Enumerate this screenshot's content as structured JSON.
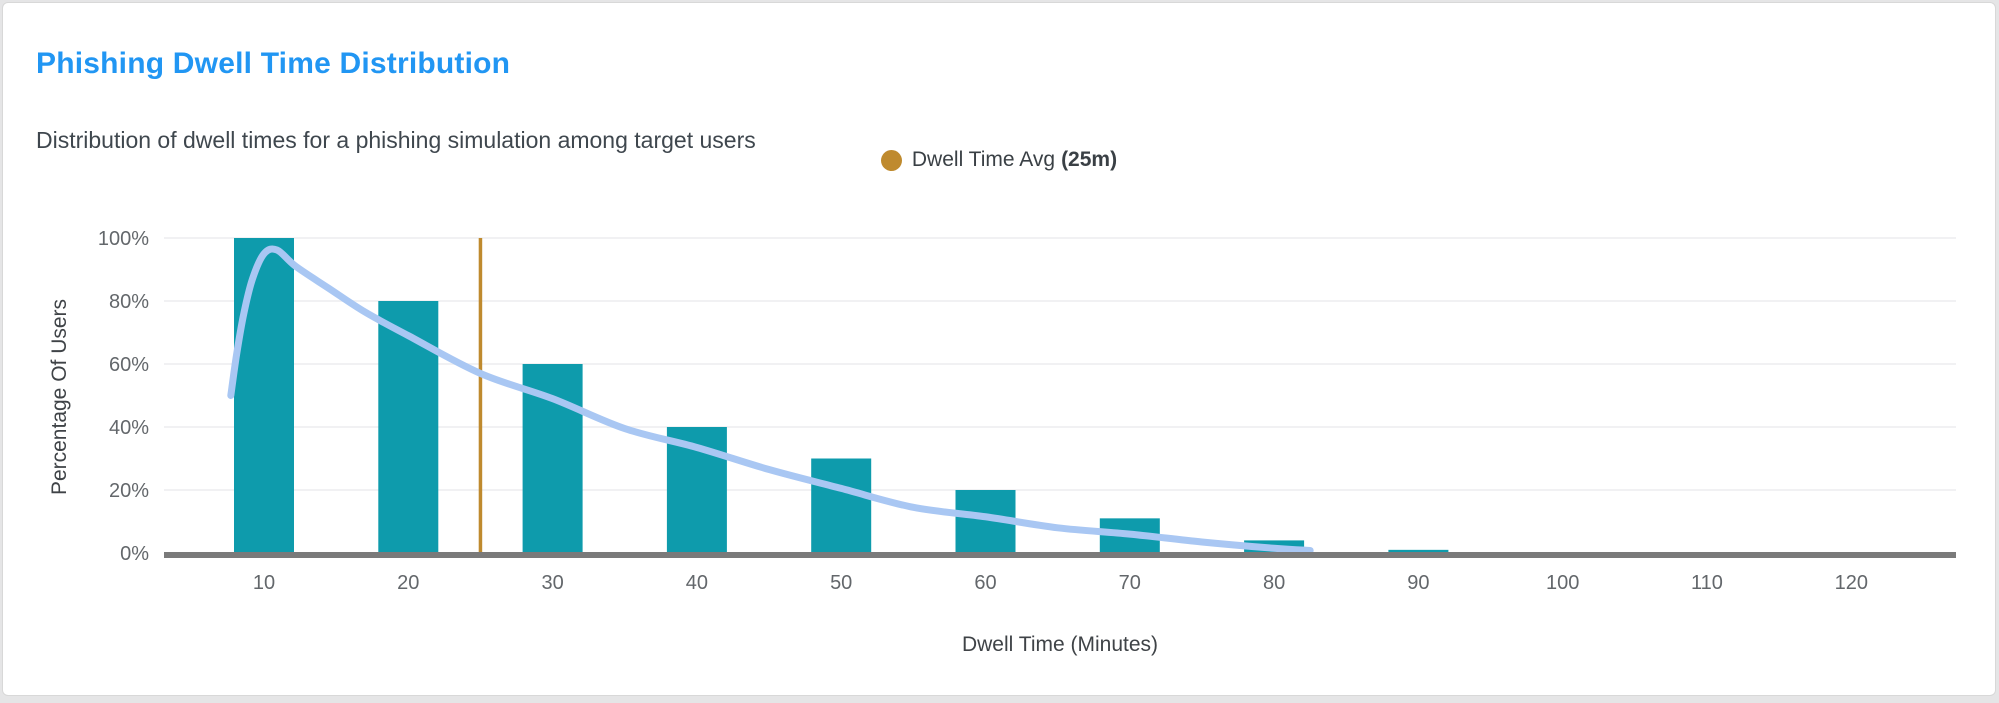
{
  "header": {
    "title": "Phishing Dwell Time Distribution",
    "subtitle": "Distribution of dwell times for a phishing simulation among target users"
  },
  "legend": {
    "label": "Dwell Time Avg",
    "value": "(25m)",
    "marker_color": "#bf8a2e"
  },
  "colors": {
    "title_accent": "#2196f3",
    "bar": "#0e9bac",
    "trend_line": "#a9c7f3",
    "avg_line": "#bf8a2e",
    "axis_line": "#7a7a7a",
    "gridline": "#f1f1f3",
    "tick_text": "#63676b",
    "axis_title_text": "#3f4347"
  },
  "chart_data": {
    "type": "bar",
    "title": "Phishing Dwell Time Distribution",
    "xlabel": "Dwell Time (Minutes)",
    "ylabel": "Percentage Of Users",
    "categories": [
      10,
      20,
      30,
      40,
      50,
      60,
      70,
      80,
      90,
      100,
      110,
      120
    ],
    "values": [
      100,
      80,
      60,
      40,
      30,
      20,
      11,
      4,
      1,
      0,
      0,
      0
    ],
    "ylim": [
      0,
      100
    ],
    "y_ticks_percent": [
      0,
      20,
      40,
      60,
      80,
      100
    ],
    "y_tick_suffix": "%",
    "grid": true,
    "legend_position": "top-center",
    "avg_marker": {
      "label": "Dwell Time Avg",
      "value_display": "25m",
      "minutes": 25
    },
    "trend_curve": {
      "points_min_pct": [
        [
          7.7,
          50
        ],
        [
          8.1,
          63
        ],
        [
          8.6,
          76
        ],
        [
          9.2,
          87
        ],
        [
          10,
          95
        ],
        [
          10.9,
          96.2
        ],
        [
          12.2,
          91
        ],
        [
          14.5,
          84
        ],
        [
          17,
          76.5
        ],
        [
          20,
          69
        ],
        [
          25,
          57
        ],
        [
          30,
          49
        ],
        [
          35,
          39.5
        ],
        [
          40,
          33.5
        ],
        [
          45,
          26.5
        ],
        [
          50,
          20.5
        ],
        [
          55,
          14.5
        ],
        [
          60,
          11.5
        ],
        [
          65,
          8
        ],
        [
          70,
          6
        ],
        [
          75,
          3.5
        ],
        [
          80,
          1.5
        ],
        [
          82.5,
          0.8
        ]
      ]
    }
  }
}
